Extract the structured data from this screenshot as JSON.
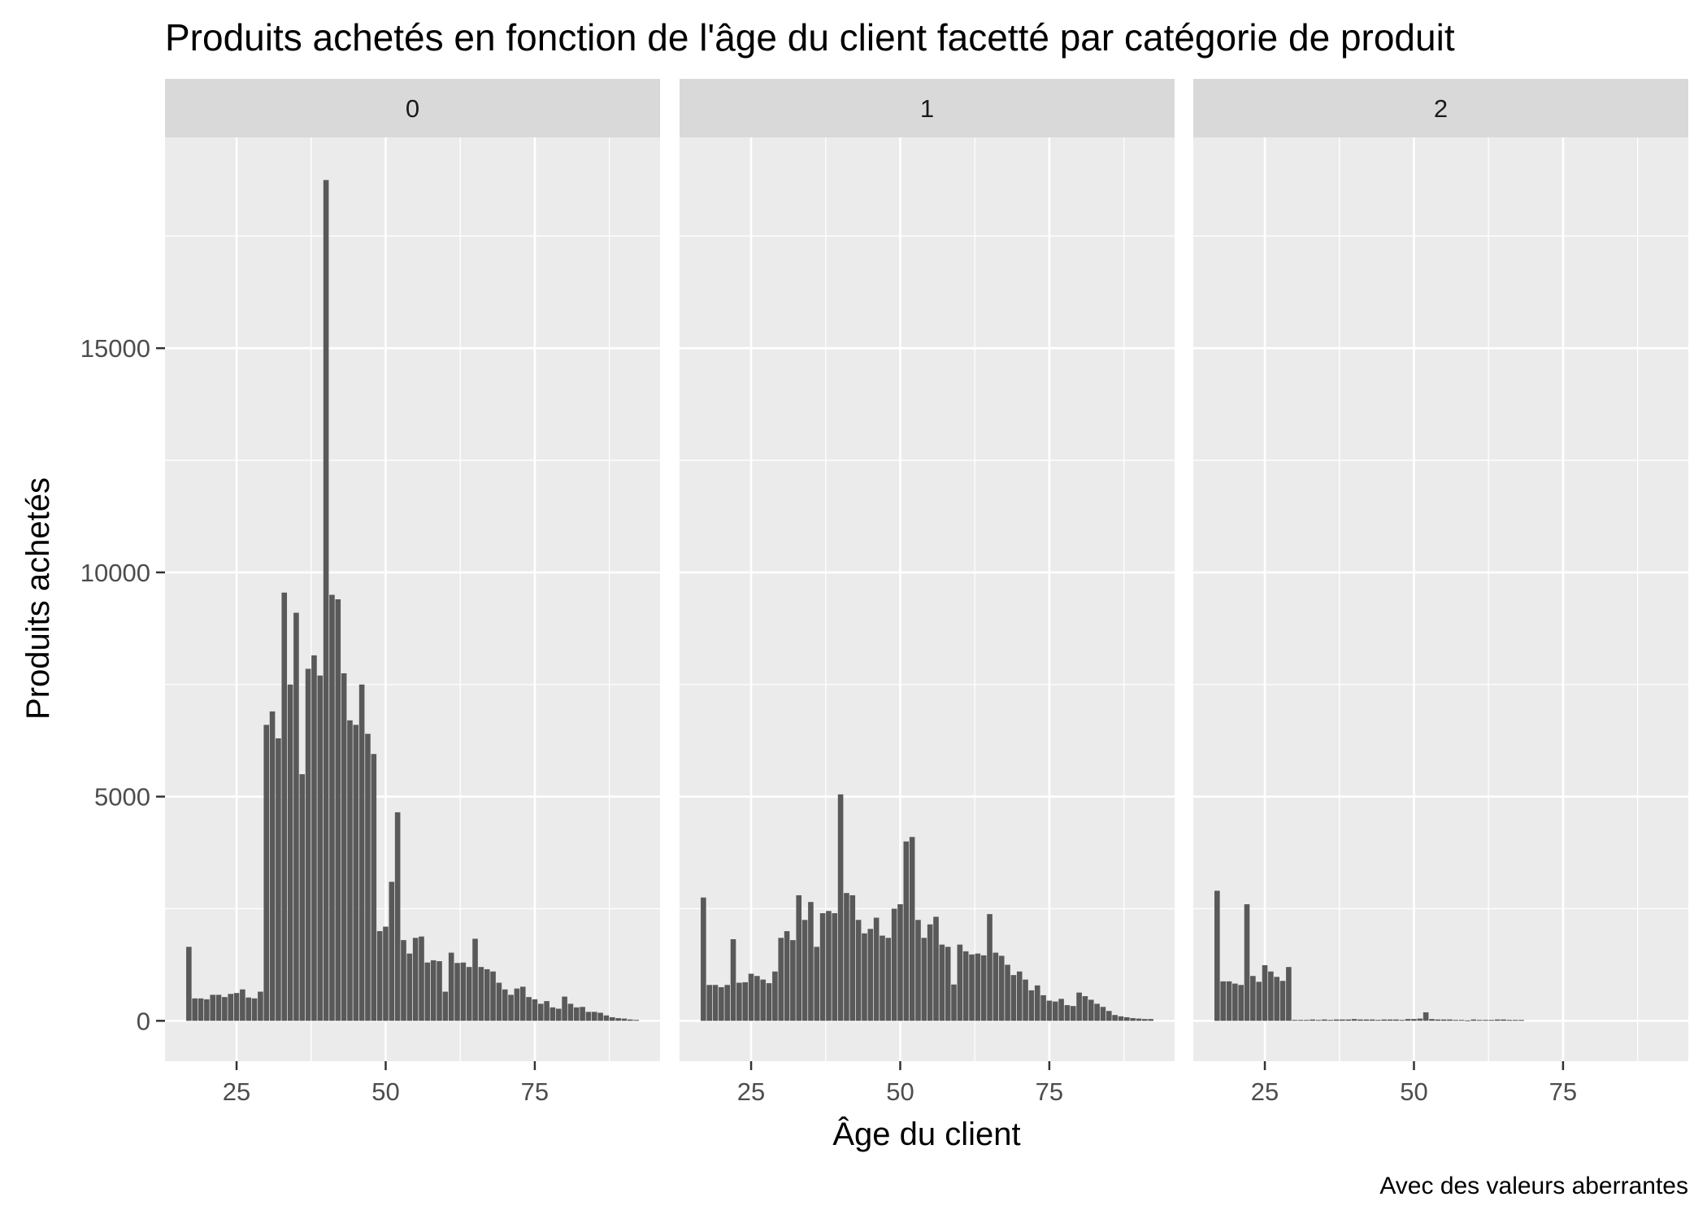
{
  "chart_data": {
    "type": "bar",
    "title": "Produits achetés en fonction de l'âge du client facetté par catégorie de produit",
    "caption": "Avec des valeurs aberrantes",
    "xlabel": "Âge du client",
    "ylabel": "Produits achetés",
    "xlim": [
      13,
      96
    ],
    "ylim": [
      -900,
      19700
    ],
    "x_ticks": [
      25,
      50,
      75
    ],
    "y_ticks": [
      0,
      5000,
      10000,
      15000
    ],
    "grid": true,
    "bar_color": "#595959",
    "panel_bg": "#ebebeb",
    "strip_bg": "#d9d9d9",
    "grid_color": "#ffffff",
    "facets": [
      {
        "label": "0",
        "x_start": 17,
        "values": [
          1650,
          500,
          500,
          480,
          580,
          580,
          530,
          600,
          620,
          700,
          520,
          500,
          650,
          6600,
          6900,
          6300,
          9550,
          7500,
          9100,
          5500,
          7850,
          8150,
          7700,
          18750,
          9500,
          9400,
          7750,
          6700,
          6600,
          7500,
          6400,
          5950,
          2000,
          2100,
          3100,
          4650,
          1800,
          1500,
          1850,
          1880,
          1300,
          1350,
          1330,
          650,
          1520,
          1290,
          1300,
          1200,
          1830,
          1200,
          1150,
          1100,
          850,
          700,
          580,
          720,
          760,
          530,
          480,
          380,
          440,
          300,
          270,
          540,
          380,
          300,
          310,
          200,
          200,
          180,
          120,
          80,
          60,
          50,
          30,
          20
        ]
      },
      {
        "label": "1",
        "x_start": 17,
        "values": [
          2750,
          800,
          800,
          750,
          800,
          1820,
          850,
          860,
          1050,
          1000,
          920,
          840,
          1100,
          1850,
          2000,
          1800,
          2800,
          2250,
          2650,
          1650,
          2400,
          2450,
          2400,
          5050,
          2850,
          2800,
          2250,
          1950,
          2050,
          2300,
          1900,
          1850,
          2500,
          2600,
          4000,
          4100,
          2250,
          1850,
          2150,
          2320,
          1700,
          1650,
          810,
          1700,
          1550,
          1480,
          1500,
          1460,
          2380,
          1520,
          1450,
          1250,
          1020,
          1100,
          920,
          680,
          790,
          570,
          450,
          430,
          490,
          350,
          330,
          630,
          550,
          470,
          380,
          310,
          220,
          130,
          100,
          80,
          60,
          50,
          40,
          40
        ]
      },
      {
        "label": "2",
        "x_start": 17,
        "values": [
          2900,
          880,
          880,
          830,
          800,
          2600,
          1000,
          870,
          1240,
          1100,
          980,
          890,
          1200,
          20,
          20,
          20,
          30,
          20,
          30,
          20,
          30,
          30,
          30,
          40,
          30,
          30,
          30,
          20,
          30,
          30,
          30,
          20,
          40,
          40,
          50,
          190,
          40,
          30,
          30,
          30,
          20,
          20,
          10,
          30,
          20,
          20,
          20,
          30,
          30,
          20,
          20,
          20
        ]
      }
    ]
  }
}
